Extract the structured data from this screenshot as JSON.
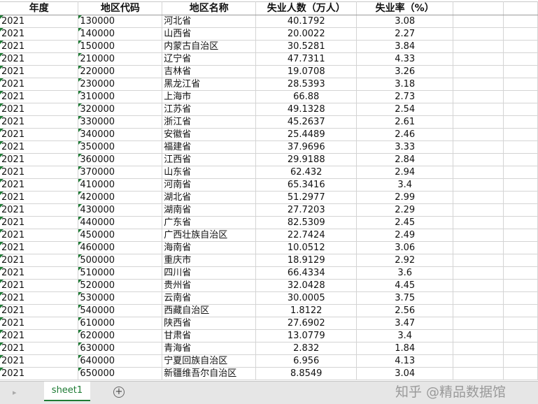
{
  "headers": [
    "年度",
    "地区代码",
    "地区名称",
    "失业人数（万人）",
    "失业率（%）"
  ],
  "rows": [
    [
      "2021",
      "130000",
      "河北省",
      "40.1792",
      "3.08"
    ],
    [
      "2021",
      "140000",
      "山西省",
      "20.0022",
      "2.27"
    ],
    [
      "2021",
      "150000",
      "内蒙古自治区",
      "30.5281",
      "3.84"
    ],
    [
      "2021",
      "210000",
      "辽宁省",
      "47.7311",
      "4.33"
    ],
    [
      "2021",
      "220000",
      "吉林省",
      "19.0708",
      "3.26"
    ],
    [
      "2021",
      "230000",
      "黑龙江省",
      "28.5393",
      "3.18"
    ],
    [
      "2021",
      "310000",
      "上海市",
      "66.88",
      "2.73"
    ],
    [
      "2021",
      "320000",
      "江苏省",
      "49.1328",
      "2.54"
    ],
    [
      "2021",
      "330000",
      "浙江省",
      "45.2637",
      "2.61"
    ],
    [
      "2021",
      "340000",
      "安徽省",
      "25.4489",
      "2.46"
    ],
    [
      "2021",
      "350000",
      "福建省",
      "37.9696",
      "3.33"
    ],
    [
      "2021",
      "360000",
      "江西省",
      "29.9188",
      "2.84"
    ],
    [
      "2021",
      "370000",
      "山东省",
      "62.432",
      "2.94"
    ],
    [
      "2021",
      "410000",
      "河南省",
      "65.3416",
      "3.4"
    ],
    [
      "2021",
      "420000",
      "湖北省",
      "51.2977",
      "2.99"
    ],
    [
      "2021",
      "430000",
      "湖南省",
      "27.7203",
      "2.29"
    ],
    [
      "2021",
      "440000",
      "广东省",
      "82.5309",
      "2.45"
    ],
    [
      "2021",
      "450000",
      "广西壮族自治区",
      "22.7424",
      "2.49"
    ],
    [
      "2021",
      "460000",
      "海南省",
      "10.0512",
      "3.06"
    ],
    [
      "2021",
      "500000",
      "重庆市",
      "18.9129",
      "2.92"
    ],
    [
      "2021",
      "510000",
      "四川省",
      "66.4334",
      "3.6"
    ],
    [
      "2021",
      "520000",
      "贵州省",
      "32.0428",
      "4.45"
    ],
    [
      "2021",
      "530000",
      "云南省",
      "30.0005",
      "3.75"
    ],
    [
      "2021",
      "540000",
      "西藏自治区",
      "1.8122",
      "2.56"
    ],
    [
      "2021",
      "610000",
      "陕西省",
      "27.6902",
      "3.47"
    ],
    [
      "2021",
      "620000",
      "甘肃省",
      "13.0779",
      "3.4"
    ],
    [
      "2021",
      "630000",
      "青海省",
      "2.832",
      "1.84"
    ],
    [
      "2021",
      "640000",
      "宁夏回族自治区",
      "6.956",
      "4.13"
    ],
    [
      "2021",
      "650000",
      "新疆维吾尔自治区",
      "8.8549",
      "3.04"
    ]
  ],
  "sheet_tabs": [
    "sheet1"
  ],
  "add_sheet_icon": "plus-circle-icon",
  "watermark": "知乎 @精品数据馆",
  "accent_color": "#1e7b34"
}
